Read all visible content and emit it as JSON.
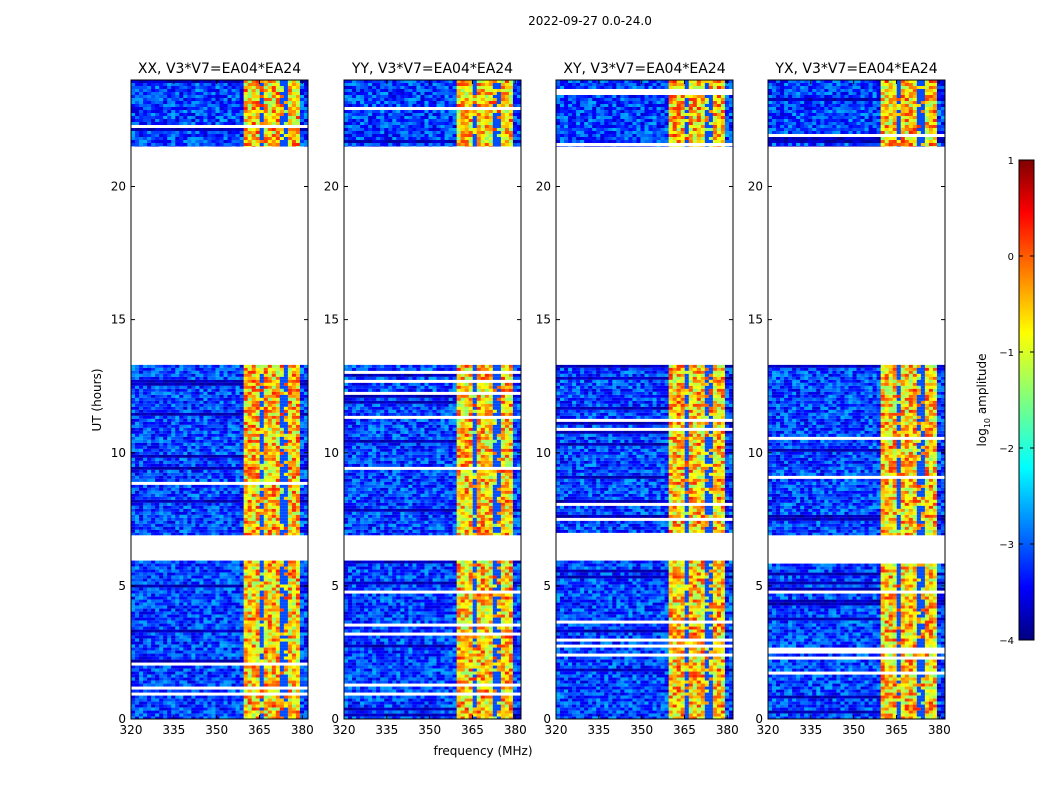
{
  "figure_title": "2022-09-27 0.0-24.0",
  "chart_data": {
    "type": "heatmap",
    "ylabel": "UT (hours)",
    "xlabel": "frequency (MHz)",
    "xlim": [
      320,
      382
    ],
    "ylim": [
      0,
      24
    ],
    "xticks": [
      320,
      335,
      350,
      365,
      380
    ],
    "yticks": [
      0,
      5,
      10,
      15,
      20
    ],
    "panels": [
      {
        "pol": "XX",
        "title": "XX, V3*V7=EA04*EA24"
      },
      {
        "pol": "YY",
        "title": "YY, V3*V7=EA04*EA24"
      },
      {
        "pol": "XY",
        "title": "XY, V3*V7=EA04*EA24"
      },
      {
        "pol": "YX",
        "title": "YX, V3*V7=EA04*EA24"
      }
    ],
    "observed_time_ranges_hours": [
      [
        0,
        5.95
      ],
      [
        6.9,
        13.3
      ],
      [
        21.5,
        24
      ]
    ],
    "flagged_gaps_hours": [
      [
        5.95,
        6.9
      ],
      [
        13.3,
        21.5
      ]
    ],
    "rfi_band_mhz": [
      359.5,
      379
    ],
    "colorbar": {
      "label_prefix": "log",
      "label_sub": "10",
      "label_suffix": " amplitude",
      "vmin": -4,
      "vmax": 1,
      "ticks": [
        1,
        0,
        -1,
        -2,
        -3,
        -4
      ],
      "colormap": "jet"
    }
  }
}
